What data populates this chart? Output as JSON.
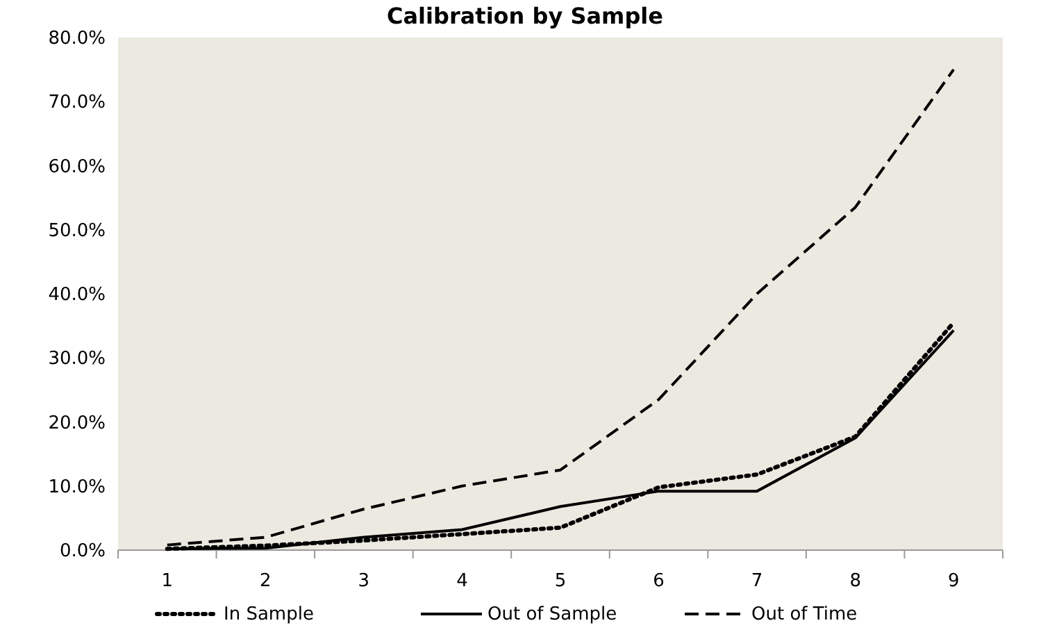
{
  "chart_data": {
    "type": "line",
    "title": "Calibration by Sample",
    "categories": [
      "1",
      "2",
      "3",
      "4",
      "5",
      "6",
      "7",
      "8",
      "9"
    ],
    "series": [
      {
        "name": "In Sample",
        "color": "#000000",
        "line_style": "dotted",
        "values": [
          0.2,
          0.7,
          1.5,
          2.5,
          3.5,
          9.8,
          11.8,
          17.7,
          35.5
        ]
      },
      {
        "name": "Out of Sample",
        "color": "#000000",
        "line_style": "solid",
        "values": [
          0.2,
          0.3,
          2.0,
          3.2,
          6.8,
          9.2,
          9.2,
          17.5,
          34.3
        ]
      },
      {
        "name": "Out of Time",
        "color": "#000000",
        "line_style": "dashed",
        "values": [
          0.8,
          2.0,
          6.4,
          10.0,
          12.5,
          23.5,
          40.0,
          53.5,
          75.0
        ]
      }
    ],
    "ylim": [
      0,
      80
    ],
    "yticks": [
      {
        "value": 0,
        "label": "0.0%"
      },
      {
        "value": 10,
        "label": "10.0%"
      },
      {
        "value": 20,
        "label": "20.0%"
      },
      {
        "value": 30,
        "label": "30.0%"
      },
      {
        "value": 40,
        "label": "40.0%"
      },
      {
        "value": 50,
        "label": "50.0%"
      },
      {
        "value": 60,
        "label": "60.0%"
      },
      {
        "value": 70,
        "label": "70.0%"
      },
      {
        "value": 80,
        "label": "80.0%"
      }
    ],
    "grid": false,
    "legend": "bottom"
  }
}
